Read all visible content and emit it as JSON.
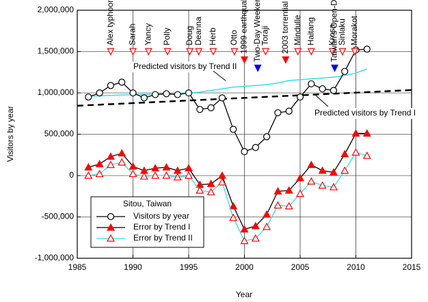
{
  "chart_data": {
    "type": "line",
    "x_label": "Year",
    "y_label": "Visitors by year",
    "xlim": [
      1985,
      2015
    ],
    "xticks": [
      1985,
      1990,
      1995,
      2000,
      2005,
      2010,
      2015
    ],
    "ylim": [
      -1000000,
      2000000
    ],
    "yticks": [
      {
        "value": -1000000,
        "label": "-1,000,000"
      },
      {
        "value": -500000,
        "label": "-500,000"
      },
      0,
      {
        "value": 500000,
        "label": "500,000"
      },
      {
        "value": 1000000,
        "label": "1,000,000"
      },
      {
        "value": 1500000,
        "label": "1,500,000"
      },
      {
        "value": 2000000,
        "label": "2,000,000"
      }
    ],
    "grid": true,
    "x": [
      1986,
      1987,
      1988,
      1989,
      1990,
      1991,
      1992,
      1993,
      1994,
      1995,
      1996,
      1997,
      1998,
      1999,
      2000,
      2001,
      2002,
      2003,
      2004,
      2005,
      2006,
      2007,
      2008,
      2009,
      2010,
      2011
    ],
    "series": [
      {
        "name": "Visitors by year",
        "color": "#000000",
        "marker": "circle",
        "marker_color": "#000000",
        "values": [
          950000,
          1000000,
          1090000,
          1130000,
          1000000,
          940000,
          980000,
          990000,
          980000,
          1000000,
          800000,
          820000,
          940000,
          560000,
          290000,
          340000,
          470000,
          760000,
          780000,
          950000,
          1110000,
          1050000,
          1030000,
          1260000,
          1520000,
          1530000
        ]
      },
      {
        "name": "Error by Trend I",
        "color": "#000000",
        "marker": "triangle-filled",
        "marker_color": "#ff0000",
        "values": [
          100000,
          140000,
          230000,
          270000,
          110000,
          60000,
          90000,
          100000,
          60000,
          90000,
          -110000,
          -100000,
          0,
          -370000,
          -650000,
          -610000,
          -470000,
          -190000,
          -180000,
          -30000,
          130000,
          60000,
          40000,
          260000,
          510000,
          510000
        ]
      },
      {
        "name": "Error by Trend II",
        "color": "#33e0e8",
        "marker": "triangle-open",
        "marker_color": "#ff0000",
        "values": [
          0,
          20000,
          130000,
          160000,
          20000,
          -10000,
          0,
          0,
          -20000,
          0,
          -180000,
          -200000,
          -80000,
          -510000,
          -790000,
          -760000,
          -620000,
          -360000,
          -370000,
          -220000,
          -70000,
          -120000,
          -140000,
          60000,
          280000,
          240000
        ]
      }
    ],
    "trend_lines": [
      {
        "color": "#000000",
        "dashed": true,
        "x": [
          1985,
          2015
        ],
        "values": [
          845000,
          1035000
        ]
      },
      {
        "color": "#33e0e8",
        "dashed": false,
        "x": [
          1986,
          1987,
          1988,
          1989,
          1990,
          1991,
          1992,
          1993,
          1994,
          1995,
          1996,
          1997,
          1998,
          1999,
          2000,
          2001,
          2002,
          2003,
          2004,
          2005,
          2006,
          2007,
          2008,
          2009,
          2010,
          2011
        ],
        "values": [
          960000,
          965000,
          970000,
          975000,
          980000,
          980000,
          985000,
          990000,
          995000,
          1000000,
          1010000,
          1030000,
          1050000,
          1070000,
          1080000,
          1090000,
          1100000,
          1120000,
          1150000,
          1160000,
          1170000,
          1180000,
          1190000,
          1210000,
          1240000,
          1290000
        ]
      }
    ],
    "annotations": [
      "Predicted visitors by Trend II",
      "Predicted visitors by Trend I"
    ],
    "legend_title": "Sitou, Taiwan",
    "legend_position": "lower left",
    "events": [
      {
        "label": "Alex typhoon",
        "x": 1988.0,
        "value": 1500000,
        "color": "#ff0000",
        "filled": false
      },
      {
        "label": "Sarah",
        "x": 1990.0,
        "value": 1500000,
        "color": "#ff0000",
        "filled": false
      },
      {
        "label": "Yancy",
        "x": 1991.4,
        "value": 1500000,
        "color": "#ff0000",
        "filled": false
      },
      {
        "label": "Polly",
        "x": 1993.1,
        "value": 1500000,
        "color": "#ff0000",
        "filled": false
      },
      {
        "label": "Doug",
        "x": 1995.1,
        "value": 1500000,
        "color": "#ff0000",
        "filled": false
      },
      {
        "label": "Deanna",
        "x": 1995.9,
        "value": 1500000,
        "color": "#ff0000",
        "filled": false
      },
      {
        "label": "Herb",
        "x": 1997.2,
        "value": 1500000,
        "color": "#ff0000",
        "filled": false
      },
      {
        "label": "Otto",
        "x": 1999.1,
        "value": 1500000,
        "color": "#ff0000",
        "filled": false
      },
      {
        "label": "1999 earthquake",
        "x": 2000.0,
        "value": 1400000,
        "color": "#ff0000",
        "filled": true
      },
      {
        "label": "Two-Day Weekend",
        "x": 2001.2,
        "value": 1300000,
        "color": "#0000ff",
        "filled": true
      },
      {
        "label": "Toraji",
        "x": 2001.9,
        "value": 1500000,
        "color": "#ff0000",
        "filled": false
      },
      {
        "label": "2003 torrential rain",
        "x": 2003.7,
        "value": 1400000,
        "color": "#ff0000",
        "filled": true
      },
      {
        "label": "Mindulle",
        "x": 2004.8,
        "value": 1500000,
        "color": "#ff0000",
        "filled": false
      },
      {
        "label": "Haitang",
        "x": 2006.0,
        "value": 1500000,
        "color": "#ff0000",
        "filled": false
      },
      {
        "label": "Krosa",
        "x": 2007.9,
        "value": 1500000,
        "color": "#ff0000",
        "filled": false
      },
      {
        "label": "Taiwan's Open-Door Policy",
        "x": 2008.1,
        "value": 1300000,
        "color": "#0000ff",
        "filled": true
      },
      {
        "label": "Sinlaku",
        "x": 2008.8,
        "value": 1500000,
        "color": "#ff0000",
        "filled": false
      },
      {
        "label": "Morakot",
        "x": 2009.9,
        "value": 1500000,
        "color": "#ff0000",
        "filled": false
      }
    ]
  }
}
